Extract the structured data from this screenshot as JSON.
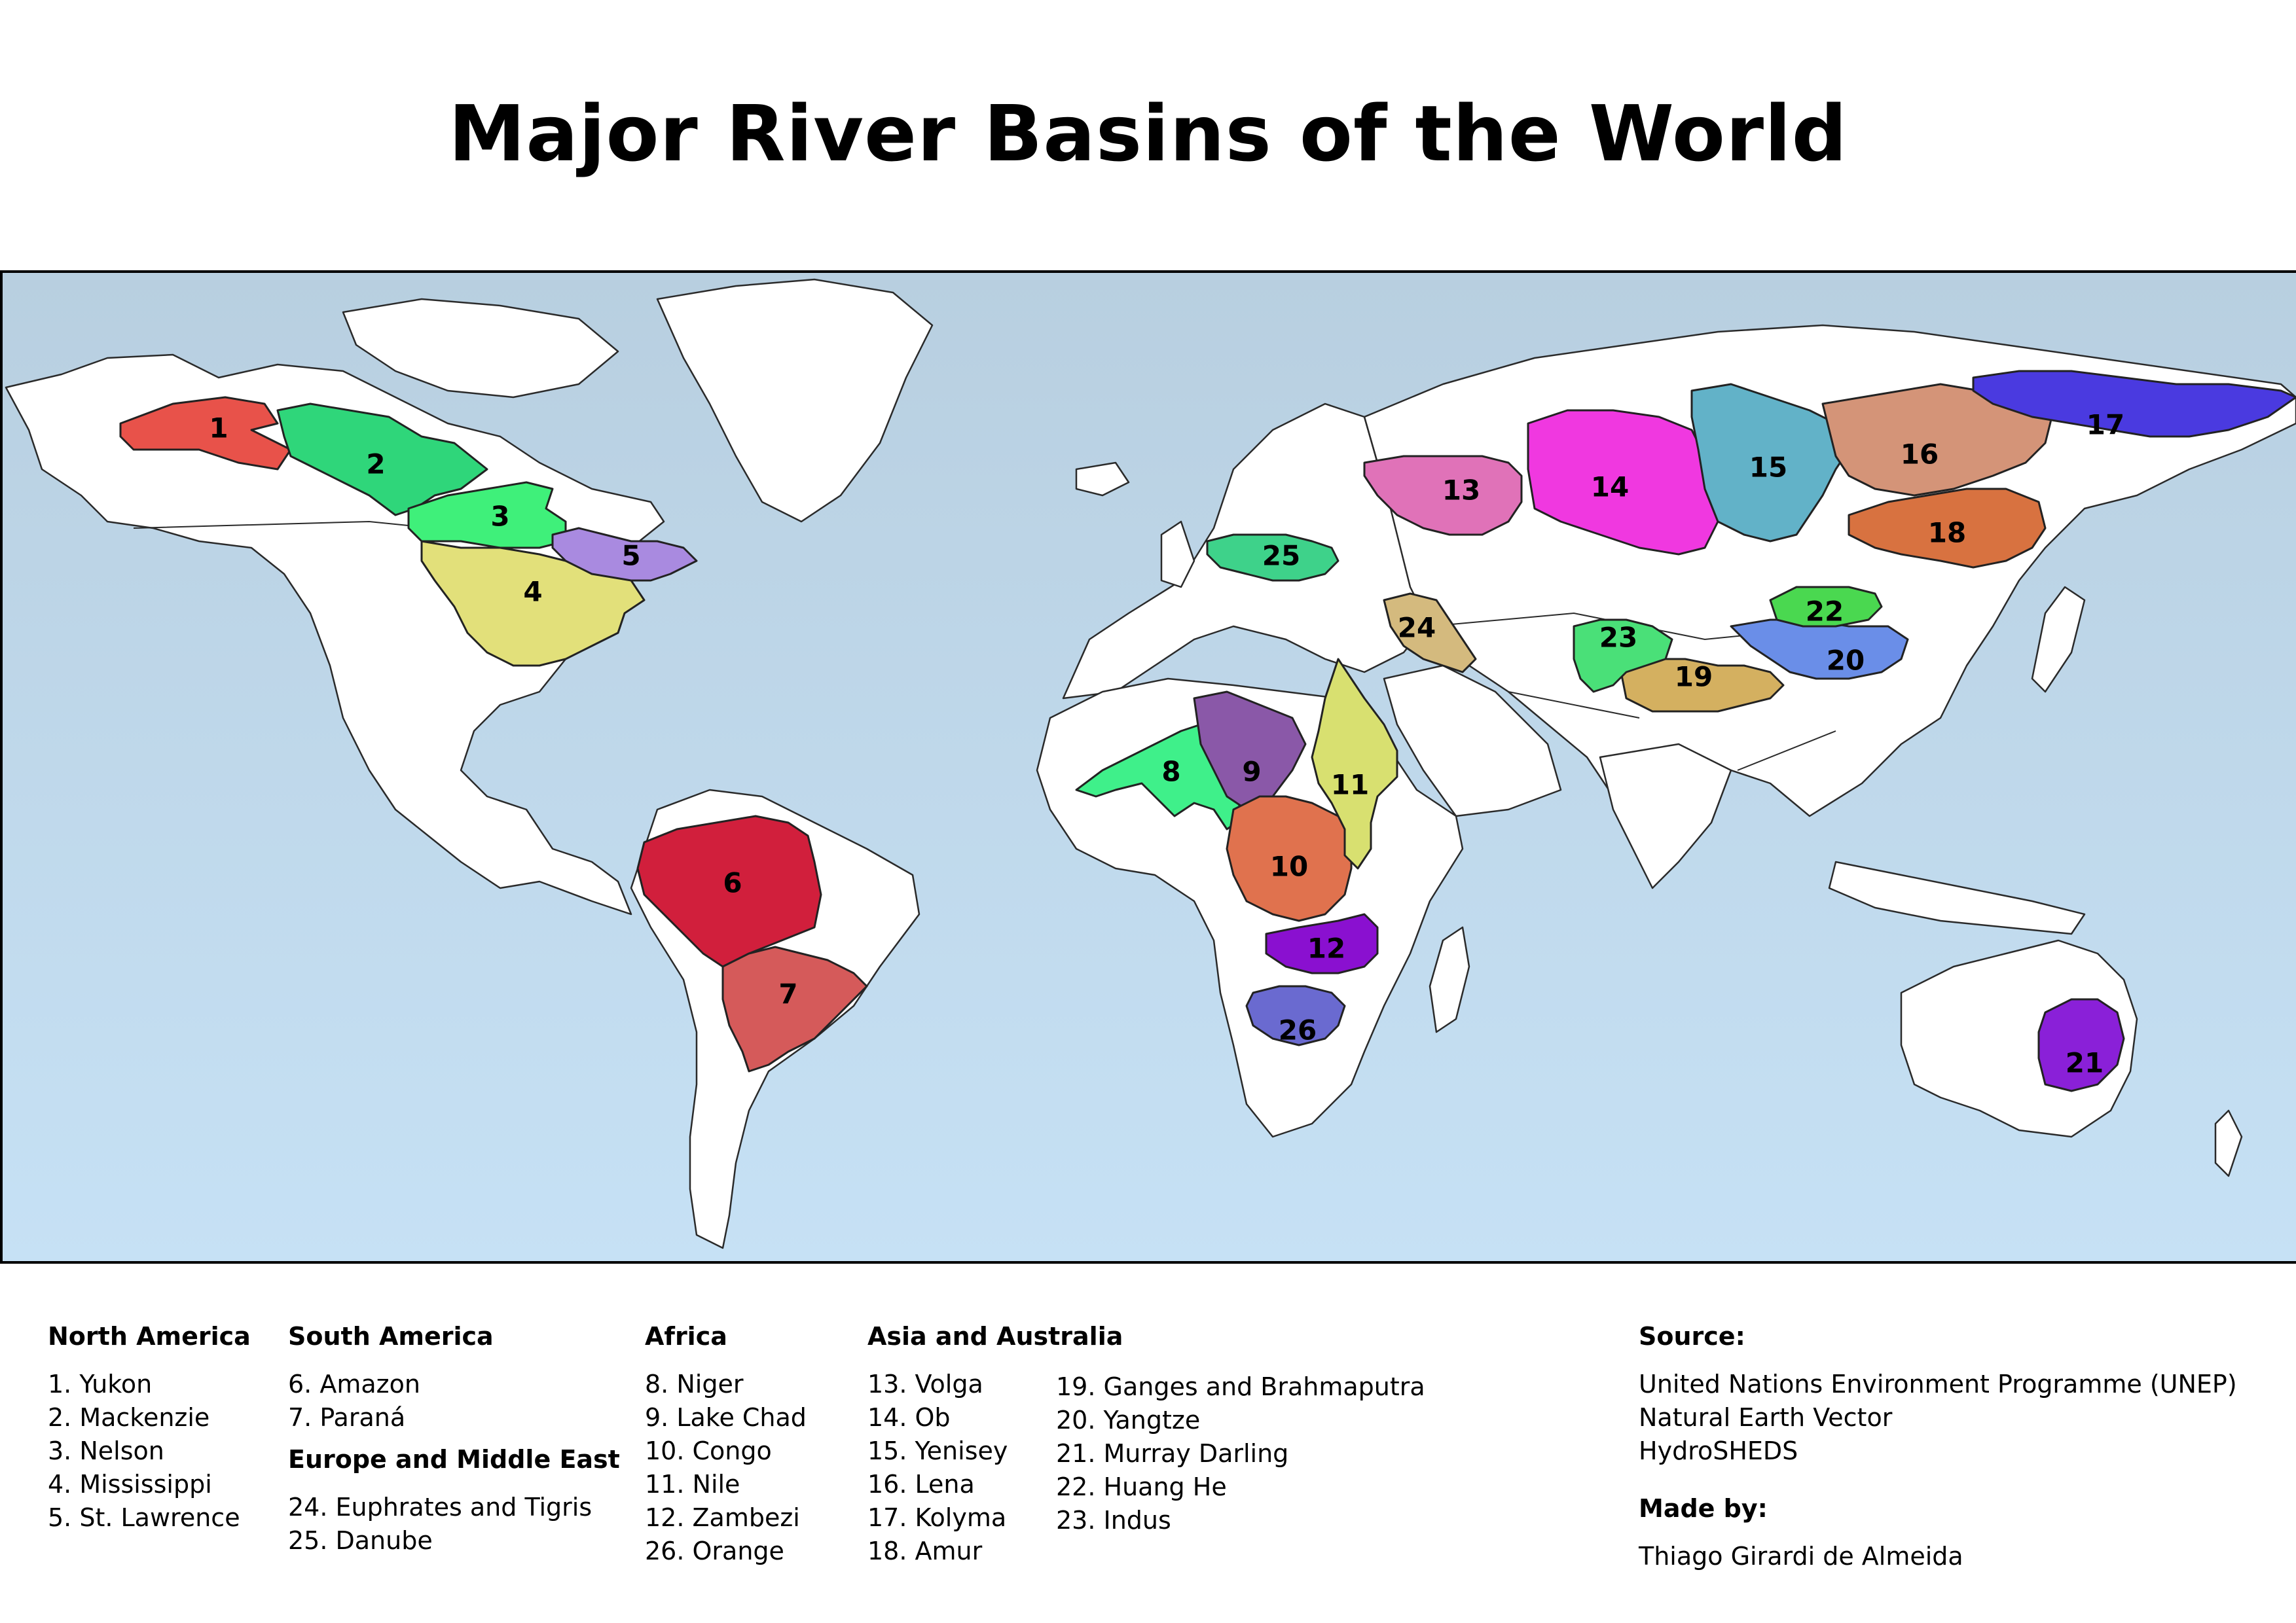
{
  "title": "Major River Basins of the World",
  "colors": {
    "ocean_top": "#b8cfe0",
    "ocean_bottom": "#c6e1f5",
    "land": "#ffffff"
  },
  "legend": {
    "north_america": {
      "heading": "North America",
      "items": [
        "1. Yukon",
        "2. Mackenzie",
        "3. Nelson",
        "4. Mississippi",
        "5. St. Lawrence"
      ]
    },
    "south_america": {
      "heading": "South America",
      "items": [
        "6. Amazon",
        "7. Paraná"
      ]
    },
    "europe_middle_east": {
      "heading": "Europe and Middle East",
      "items": [
        "24. Euphrates and Tigris",
        "25. Danube"
      ]
    },
    "africa": {
      "heading": "Africa",
      "items": [
        "8. Niger",
        "9. Lake Chad",
        "10. Congo",
        "11. Nile",
        "12. Zambezi",
        "26. Orange"
      ]
    },
    "asia_australia": {
      "heading": "Asia and Australia",
      "items_a": [
        "13. Volga",
        "14. Ob",
        "15. Yenisey",
        "16. Lena",
        "17. Kolyma",
        "18. Amur"
      ],
      "items_b": [
        "19. Ganges and Brahmaputra",
        "20. Yangtze",
        "21. Murray Darling",
        "22. Huang He",
        "23. Indus"
      ]
    },
    "source": {
      "heading": "Source:",
      "items": [
        "United Nations Environment Programme (UNEP)",
        "Natural Earth Vector",
        "HydroSHEDS"
      ]
    },
    "made_by": {
      "heading": "Made by:",
      "name": "Thiago Girardi de Almeida"
    }
  },
  "basins": [
    {
      "id": 1,
      "label": "1",
      "name": "Yukon",
      "color": "#e8524a"
    },
    {
      "id": 2,
      "label": "2",
      "name": "Mackenzie",
      "color": "#2fd67a"
    },
    {
      "id": 3,
      "label": "3",
      "name": "Nelson",
      "color": "#3ff07a"
    },
    {
      "id": 4,
      "label": "4",
      "name": "Mississippi",
      "color": "#e2e07a"
    },
    {
      "id": 5,
      "label": "5",
      "name": "St. Lawrence",
      "color": "#a98ae0"
    },
    {
      "id": 6,
      "label": "6",
      "name": "Amazon",
      "color": "#d11f3c"
    },
    {
      "id": 7,
      "label": "7",
      "name": "Paraná",
      "color": "#d55a5a"
    },
    {
      "id": 8,
      "label": "8",
      "name": "Niger",
      "color": "#3ff08a"
    },
    {
      "id": 9,
      "label": "9",
      "name": "Lake Chad",
      "color": "#8a58a8"
    },
    {
      "id": 10,
      "label": "10",
      "name": "Congo",
      "color": "#e0724e"
    },
    {
      "id": 11,
      "label": "11",
      "name": "Nile",
      "color": "#d8e070"
    },
    {
      "id": 12,
      "label": "12",
      "name": "Zambezi",
      "color": "#8a10d0"
    },
    {
      "id": 13,
      "label": "13",
      "name": "Volga",
      "color": "#e072b8"
    },
    {
      "id": 14,
      "label": "14",
      "name": "Ob",
      "color": "#f038e0"
    },
    {
      "id": 15,
      "label": "15",
      "name": "Yenisey",
      "color": "#62b2c8"
    },
    {
      "id": 16,
      "label": "16",
      "name": "Lena",
      "color": "#d49478"
    },
    {
      "id": 17,
      "label": "17",
      "name": "Kolyma",
      "color": "#4a3ae0"
    },
    {
      "id": 18,
      "label": "18",
      "name": "Amur",
      "color": "#d87240"
    },
    {
      "id": 19,
      "label": "19",
      "name": "Ganges and Brahmaputra",
      "color": "#d4b060"
    },
    {
      "id": 20,
      "label": "20",
      "name": "Yangtze",
      "color": "#6a8ee8"
    },
    {
      "id": 21,
      "label": "21",
      "name": "Murray Darling",
      "color": "#8a20d8"
    },
    {
      "id": 22,
      "label": "22",
      "name": "Huang He",
      "color": "#4ad850"
    },
    {
      "id": 23,
      "label": "23",
      "name": "Indus",
      "color": "#4ae078"
    },
    {
      "id": 24,
      "label": "24",
      "name": "Euphrates and Tigris",
      "color": "#d4ba7e"
    },
    {
      "id": 25,
      "label": "25",
      "name": "Danube",
      "color": "#3ed28a"
    },
    {
      "id": 26,
      "label": "26",
      "name": "Orange",
      "color": "#6a6ad0"
    }
  ]
}
